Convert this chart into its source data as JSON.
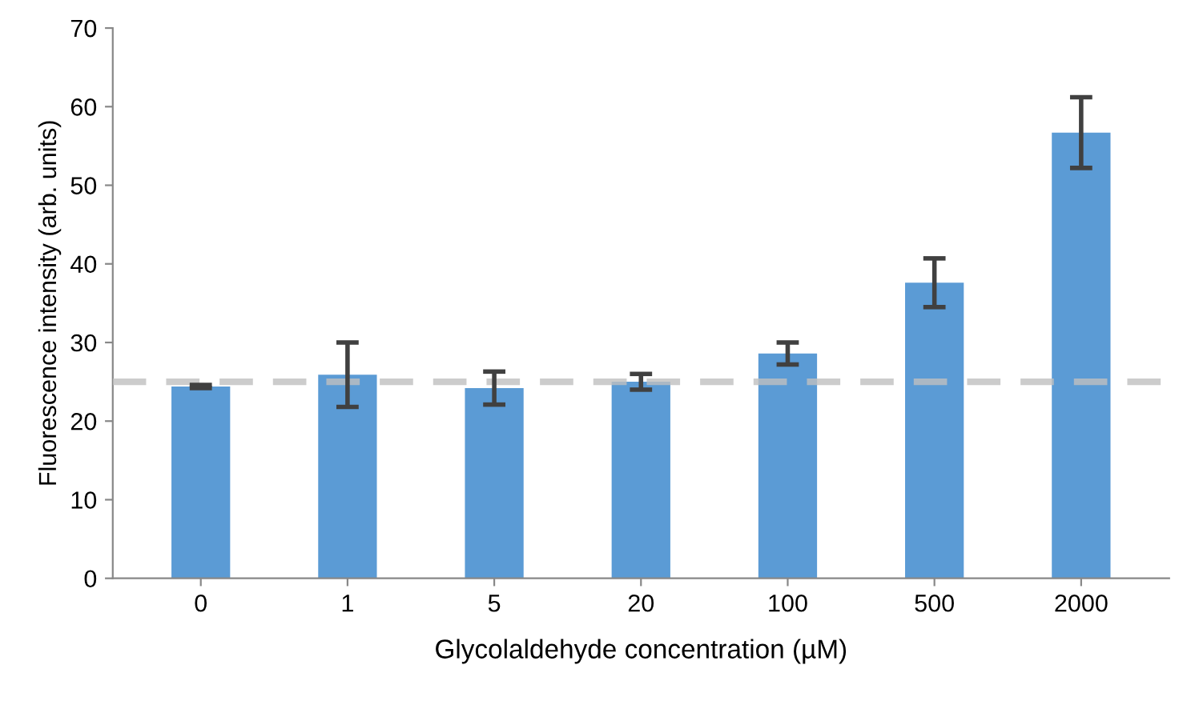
{
  "chart_data": {
    "type": "bar",
    "xlabel": "Glycolaldehyde concentration (µM)",
    "ylabel": "Fluorescence intensity (arb. units)",
    "categories": [
      "0",
      "1",
      "5",
      "20",
      "100",
      "500",
      "2000"
    ],
    "values": [
      24.4,
      25.9,
      24.2,
      25.0,
      28.6,
      37.6,
      56.7
    ],
    "errors": [
      0.2,
      4.1,
      2.1,
      1.0,
      1.4,
      3.1,
      4.5
    ],
    "color": "#5b9bd5",
    "ylim": [
      0,
      70
    ],
    "yticks": [
      0,
      10,
      20,
      30,
      40,
      50,
      60,
      70
    ],
    "grid": false,
    "ref_lines": [
      {
        "axis": "y",
        "value": 25,
        "color": "#bfbfbf",
        "line_style": "dashed"
      }
    ]
  }
}
